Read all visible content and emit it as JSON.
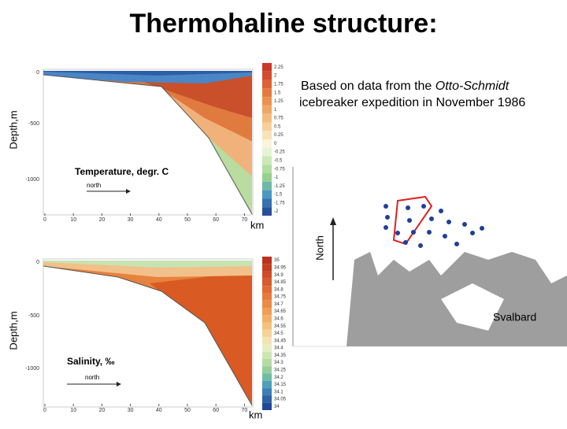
{
  "title": "Thermohaline structure:",
  "note": {
    "before": "Based on data from the ",
    "italic": "Otto-Schmidt",
    "after": " icebreaker expedition in November 1986"
  },
  "temperature_panel": {
    "label": "Temperature, degr. C",
    "arrow_label": "north",
    "y_axis_label": "Depth,m",
    "x_axis_label": "km",
    "y_ticks": [
      "0",
      "-500",
      "-1000"
    ],
    "x_ticks": [
      "0",
      "10",
      "20",
      "30",
      "40",
      "50",
      "60",
      "70"
    ],
    "colorbar": [
      "2.25",
      "2",
      "1.75",
      "1.5",
      "1.25",
      "1",
      "0.75",
      "0.5",
      "0.25",
      "0",
      "-0.25",
      "-0.5",
      "-0.75",
      "-1",
      "-1.25",
      "-1.5",
      "-1.75",
      "-2"
    ]
  },
  "salinity_panel": {
    "label": "Salinity, ‰",
    "arrow_label": "north",
    "y_axis_label": "Depth,m",
    "x_axis_label": "km",
    "y_ticks": [
      "0",
      "-500",
      "-1000"
    ],
    "x_ticks": [
      "0",
      "10",
      "20",
      "30",
      "40",
      "50",
      "60",
      "70"
    ],
    "colorbar": [
      "35",
      "34.95",
      "34.9",
      "34.85",
      "34.8",
      "34.75",
      "34.7",
      "34.65",
      "34.6",
      "34.55",
      "34.5",
      "34.45",
      "34.4",
      "34.35",
      "34.3",
      "34.25",
      "34.2",
      "34.15",
      "34.1",
      "34.05",
      "34"
    ]
  },
  "map": {
    "north_label": "North",
    "place_label": "Svalbard"
  }
}
